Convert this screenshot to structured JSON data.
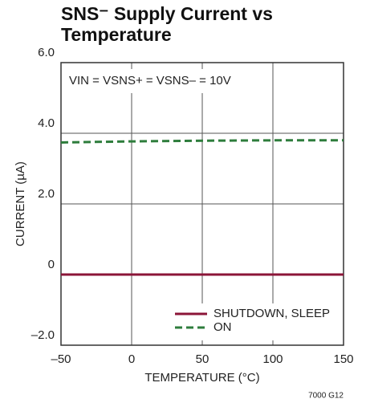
{
  "chart_data": {
    "type": "line",
    "title": "SNS⁻ Supply Current vs Temperature",
    "annotation": "VIN = VSNS+ = VSNS– = 10V",
    "xlabel": "TEMPERATURE (°C)",
    "ylabel": "CURRENT (µA)",
    "footnote": "7000 G12",
    "x": [
      -50,
      0,
      50,
      100,
      150
    ],
    "series": [
      {
        "name": "SHUTDOWN, SLEEP",
        "color": "#8b1538",
        "dashed": false,
        "values": [
          0,
          0,
          0,
          0,
          0
        ]
      },
      {
        "name": "ON",
        "color": "#2e7d3c",
        "dashed": true,
        "values": [
          3.74,
          3.77,
          3.79,
          3.8,
          3.8
        ]
      }
    ],
    "xlim": [
      -50,
      150
    ],
    "xticks": [
      {
        "value": -50,
        "label": "–50"
      },
      0,
      50,
      100,
      150
    ],
    "ylim": [
      -2,
      6
    ],
    "yticks": [
      {
        "value": -2,
        "label": "–2.0"
      },
      0,
      {
        "value": 2,
        "label": "2.0"
      },
      {
        "value": 4,
        "label": "4.0"
      },
      {
        "value": 6,
        "label": "6.0"
      }
    ],
    "grid": true,
    "legend": "lower right"
  }
}
